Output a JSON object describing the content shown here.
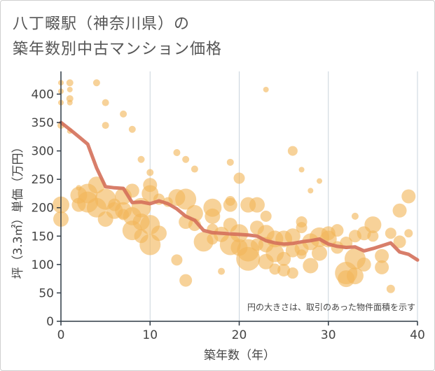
{
  "title_line1": "八丁畷駅（神奈川県）の",
  "title_line2": "築年数別中古マンション価格",
  "note": "円の大きさは、取引のあった物件面積を示す",
  "colors": {
    "bubble": "#f2b75a",
    "line": "#d4705a",
    "grid": "#c9d3dc",
    "axis": "#2f3a45"
  },
  "chart_data": {
    "type": "scatter",
    "xlabel": "築年数（年）",
    "ylabel": "坪（3.3㎡）単価（万円）",
    "xlim": [
      0,
      40
    ],
    "ylim": [
      0,
      440
    ],
    "xticks": [
      0,
      10,
      20,
      30,
      40
    ],
    "yticks": [
      0,
      50,
      100,
      150,
      200,
      250,
      300,
      350,
      400
    ],
    "grid": "vertical",
    "trend": [
      {
        "x": 0,
        "y": 350
      },
      {
        "x": 1,
        "y": 338
      },
      {
        "x": 2,
        "y": 325
      },
      {
        "x": 3,
        "y": 312
      },
      {
        "x": 4,
        "y": 270
      },
      {
        "x": 5,
        "y": 237
      },
      {
        "x": 6,
        "y": 235
      },
      {
        "x": 7,
        "y": 234
      },
      {
        "x": 8,
        "y": 209
      },
      {
        "x": 9,
        "y": 210
      },
      {
        "x": 10,
        "y": 207
      },
      {
        "x": 11,
        "y": 212
      },
      {
        "x": 12,
        "y": 207
      },
      {
        "x": 13,
        "y": 198
      },
      {
        "x": 14,
        "y": 185
      },
      {
        "x": 15,
        "y": 178
      },
      {
        "x": 16,
        "y": 160
      },
      {
        "x": 17,
        "y": 156
      },
      {
        "x": 18,
        "y": 155
      },
      {
        "x": 19,
        "y": 154
      },
      {
        "x": 20,
        "y": 153
      },
      {
        "x": 21,
        "y": 152
      },
      {
        "x": 22,
        "y": 150
      },
      {
        "x": 23,
        "y": 142
      },
      {
        "x": 24,
        "y": 138
      },
      {
        "x": 25,
        "y": 136
      },
      {
        "x": 26,
        "y": 137
      },
      {
        "x": 27,
        "y": 140
      },
      {
        "x": 28,
        "y": 142
      },
      {
        "x": 29,
        "y": 145
      },
      {
        "x": 30,
        "y": 136
      },
      {
        "x": 31,
        "y": 132
      },
      {
        "x": 32,
        "y": 130
      },
      {
        "x": 33,
        "y": 131
      },
      {
        "x": 34,
        "y": 124
      },
      {
        "x": 35,
        "y": 128
      },
      {
        "x": 36,
        "y": 133
      },
      {
        "x": 37,
        "y": 138
      },
      {
        "x": 38,
        "y": 122
      },
      {
        "x": 39,
        "y": 118
      },
      {
        "x": 40,
        "y": 108
      }
    ],
    "points": [
      {
        "x": 0,
        "y": 420,
        "s": 4
      },
      {
        "x": 0,
        "y": 405,
        "s": 4
      },
      {
        "x": 0,
        "y": 385,
        "s": 4
      },
      {
        "x": 0,
        "y": 345,
        "s": 5
      },
      {
        "x": 0,
        "y": 205,
        "s": 12
      },
      {
        "x": 0,
        "y": 180,
        "s": 11
      },
      {
        "x": 1,
        "y": 420,
        "s": 5
      },
      {
        "x": 1,
        "y": 408,
        "s": 4
      },
      {
        "x": 1,
        "y": 392,
        "s": 5
      },
      {
        "x": 1,
        "y": 385,
        "s": 4
      },
      {
        "x": 1,
        "y": 335,
        "s": 4
      },
      {
        "x": 2,
        "y": 205,
        "s": 10
      },
      {
        "x": 2,
        "y": 222,
        "s": 12
      },
      {
        "x": 2,
        "y": 235,
        "s": 4
      },
      {
        "x": 3,
        "y": 225,
        "s": 14
      },
      {
        "x": 3,
        "y": 210,
        "s": 15
      },
      {
        "x": 4,
        "y": 420,
        "s": 5
      },
      {
        "x": 4,
        "y": 240,
        "s": 12
      },
      {
        "x": 4,
        "y": 200,
        "s": 14
      },
      {
        "x": 5,
        "y": 385,
        "s": 5
      },
      {
        "x": 5,
        "y": 345,
        "s": 5
      },
      {
        "x": 5,
        "y": 215,
        "s": 15
      },
      {
        "x": 5,
        "y": 180,
        "s": 11
      },
      {
        "x": 6,
        "y": 195,
        "s": 12
      },
      {
        "x": 6,
        "y": 205,
        "s": 9
      },
      {
        "x": 7,
        "y": 365,
        "s": 5
      },
      {
        "x": 7,
        "y": 220,
        "s": 12
      },
      {
        "x": 7,
        "y": 195,
        "s": 12
      },
      {
        "x": 7,
        "y": 188,
        "s": 8
      },
      {
        "x": 8,
        "y": 338,
        "s": 5
      },
      {
        "x": 8,
        "y": 230,
        "s": 10
      },
      {
        "x": 8,
        "y": 185,
        "s": 13
      },
      {
        "x": 8,
        "y": 160,
        "s": 14
      },
      {
        "x": 9,
        "y": 285,
        "s": 5
      },
      {
        "x": 9,
        "y": 200,
        "s": 14
      },
      {
        "x": 9,
        "y": 175,
        "s": 12
      },
      {
        "x": 9,
        "y": 150,
        "s": 10
      },
      {
        "x": 10,
        "y": 262,
        "s": 5
      },
      {
        "x": 10,
        "y": 240,
        "s": 10
      },
      {
        "x": 10,
        "y": 225,
        "s": 12
      },
      {
        "x": 10,
        "y": 170,
        "s": 14
      },
      {
        "x": 10,
        "y": 135,
        "s": 15
      },
      {
        "x": 11,
        "y": 215,
        "s": 8
      },
      {
        "x": 11,
        "y": 155,
        "s": 11
      },
      {
        "x": 12,
        "y": 210,
        "s": 7
      },
      {
        "x": 13,
        "y": 297,
        "s": 5
      },
      {
        "x": 13,
        "y": 218,
        "s": 12
      },
      {
        "x": 13,
        "y": 108,
        "s": 8
      },
      {
        "x": 14,
        "y": 285,
        "s": 5
      },
      {
        "x": 14,
        "y": 215,
        "s": 15
      },
      {
        "x": 14,
        "y": 175,
        "s": 10
      },
      {
        "x": 14,
        "y": 72,
        "s": 9
      },
      {
        "x": 15,
        "y": 268,
        "s": 5
      },
      {
        "x": 15,
        "y": 190,
        "s": 12
      },
      {
        "x": 15,
        "y": 170,
        "s": 9
      },
      {
        "x": 16,
        "y": 140,
        "s": 14
      },
      {
        "x": 17,
        "y": 200,
        "s": 13
      },
      {
        "x": 17,
        "y": 185,
        "s": 11
      },
      {
        "x": 17,
        "y": 162,
        "s": 8
      },
      {
        "x": 17,
        "y": 145,
        "s": 8
      },
      {
        "x": 18,
        "y": 153,
        "s": 11
      },
      {
        "x": 18,
        "y": 88,
        "s": 5
      },
      {
        "x": 19,
        "y": 280,
        "s": 5
      },
      {
        "x": 19,
        "y": 212,
        "s": 7
      },
      {
        "x": 19,
        "y": 205,
        "s": 10
      },
      {
        "x": 19,
        "y": 170,
        "s": 10
      },
      {
        "x": 19,
        "y": 135,
        "s": 15
      },
      {
        "x": 20,
        "y": 252,
        "s": 8
      },
      {
        "x": 20,
        "y": 155,
        "s": 13
      },
      {
        "x": 20,
        "y": 130,
        "s": 12
      },
      {
        "x": 21,
        "y": 205,
        "s": 11
      },
      {
        "x": 21,
        "y": 125,
        "s": 16
      },
      {
        "x": 21,
        "y": 110,
        "s": 17
      },
      {
        "x": 22,
        "y": 205,
        "s": 11
      },
      {
        "x": 22,
        "y": 165,
        "s": 10
      },
      {
        "x": 22,
        "y": 135,
        "s": 9
      },
      {
        "x": 23,
        "y": 408,
        "s": 4
      },
      {
        "x": 23,
        "y": 185,
        "s": 8
      },
      {
        "x": 23,
        "y": 155,
        "s": 12
      },
      {
        "x": 23,
        "y": 135,
        "s": 11
      },
      {
        "x": 23,
        "y": 105,
        "s": 11
      },
      {
        "x": 24,
        "y": 145,
        "s": 12
      },
      {
        "x": 24,
        "y": 120,
        "s": 13
      },
      {
        "x": 24,
        "y": 92,
        "s": 8
      },
      {
        "x": 25,
        "y": 145,
        "s": 12
      },
      {
        "x": 25,
        "y": 110,
        "s": 10
      },
      {
        "x": 25,
        "y": 90,
        "s": 9
      },
      {
        "x": 26,
        "y": 300,
        "s": 7
      },
      {
        "x": 26,
        "y": 150,
        "s": 11
      },
      {
        "x": 26,
        "y": 125,
        "s": 10
      },
      {
        "x": 26,
        "y": 85,
        "s": 8
      },
      {
        "x": 27,
        "y": 267,
        "s": 4
      },
      {
        "x": 27,
        "y": 175,
        "s": 8
      },
      {
        "x": 27,
        "y": 165,
        "s": 8
      },
      {
        "x": 27,
        "y": 128,
        "s": 10
      },
      {
        "x": 27,
        "y": 118,
        "s": 7
      },
      {
        "x": 28,
        "y": 230,
        "s": 4
      },
      {
        "x": 28,
        "y": 140,
        "s": 12
      },
      {
        "x": 28,
        "y": 98,
        "s": 11
      },
      {
        "x": 29,
        "y": 247,
        "s": 4
      },
      {
        "x": 29,
        "y": 148,
        "s": 14
      },
      {
        "x": 29,
        "y": 120,
        "s": 11
      },
      {
        "x": 30,
        "y": 155,
        "s": 10
      },
      {
        "x": 30,
        "y": 145,
        "s": 12
      },
      {
        "x": 31,
        "y": 160,
        "s": 9
      },
      {
        "x": 31,
        "y": 130,
        "s": 9
      },
      {
        "x": 32,
        "y": 138,
        "s": 9
      },
      {
        "x": 32,
        "y": 85,
        "s": 16
      },
      {
        "x": 32,
        "y": 75,
        "s": 12
      },
      {
        "x": 33,
        "y": 185,
        "s": 5
      },
      {
        "x": 33,
        "y": 150,
        "s": 9
      },
      {
        "x": 33,
        "y": 110,
        "s": 15
      },
      {
        "x": 33,
        "y": 80,
        "s": 12
      },
      {
        "x": 34,
        "y": 155,
        "s": 10
      },
      {
        "x": 34,
        "y": 100,
        "s": 10
      },
      {
        "x": 35,
        "y": 170,
        "s": 12
      },
      {
        "x": 35,
        "y": 150,
        "s": 8
      },
      {
        "x": 36,
        "y": 115,
        "s": 10
      },
      {
        "x": 36,
        "y": 95,
        "s": 10
      },
      {
        "x": 37,
        "y": 155,
        "s": 8
      },
      {
        "x": 37,
        "y": 57,
        "s": 6
      },
      {
        "x": 38,
        "y": 195,
        "s": 10
      },
      {
        "x": 38,
        "y": 140,
        "s": 9
      },
      {
        "x": 39,
        "y": 220,
        "s": 10
      },
      {
        "x": 39,
        "y": 155,
        "s": 6
      }
    ]
  }
}
